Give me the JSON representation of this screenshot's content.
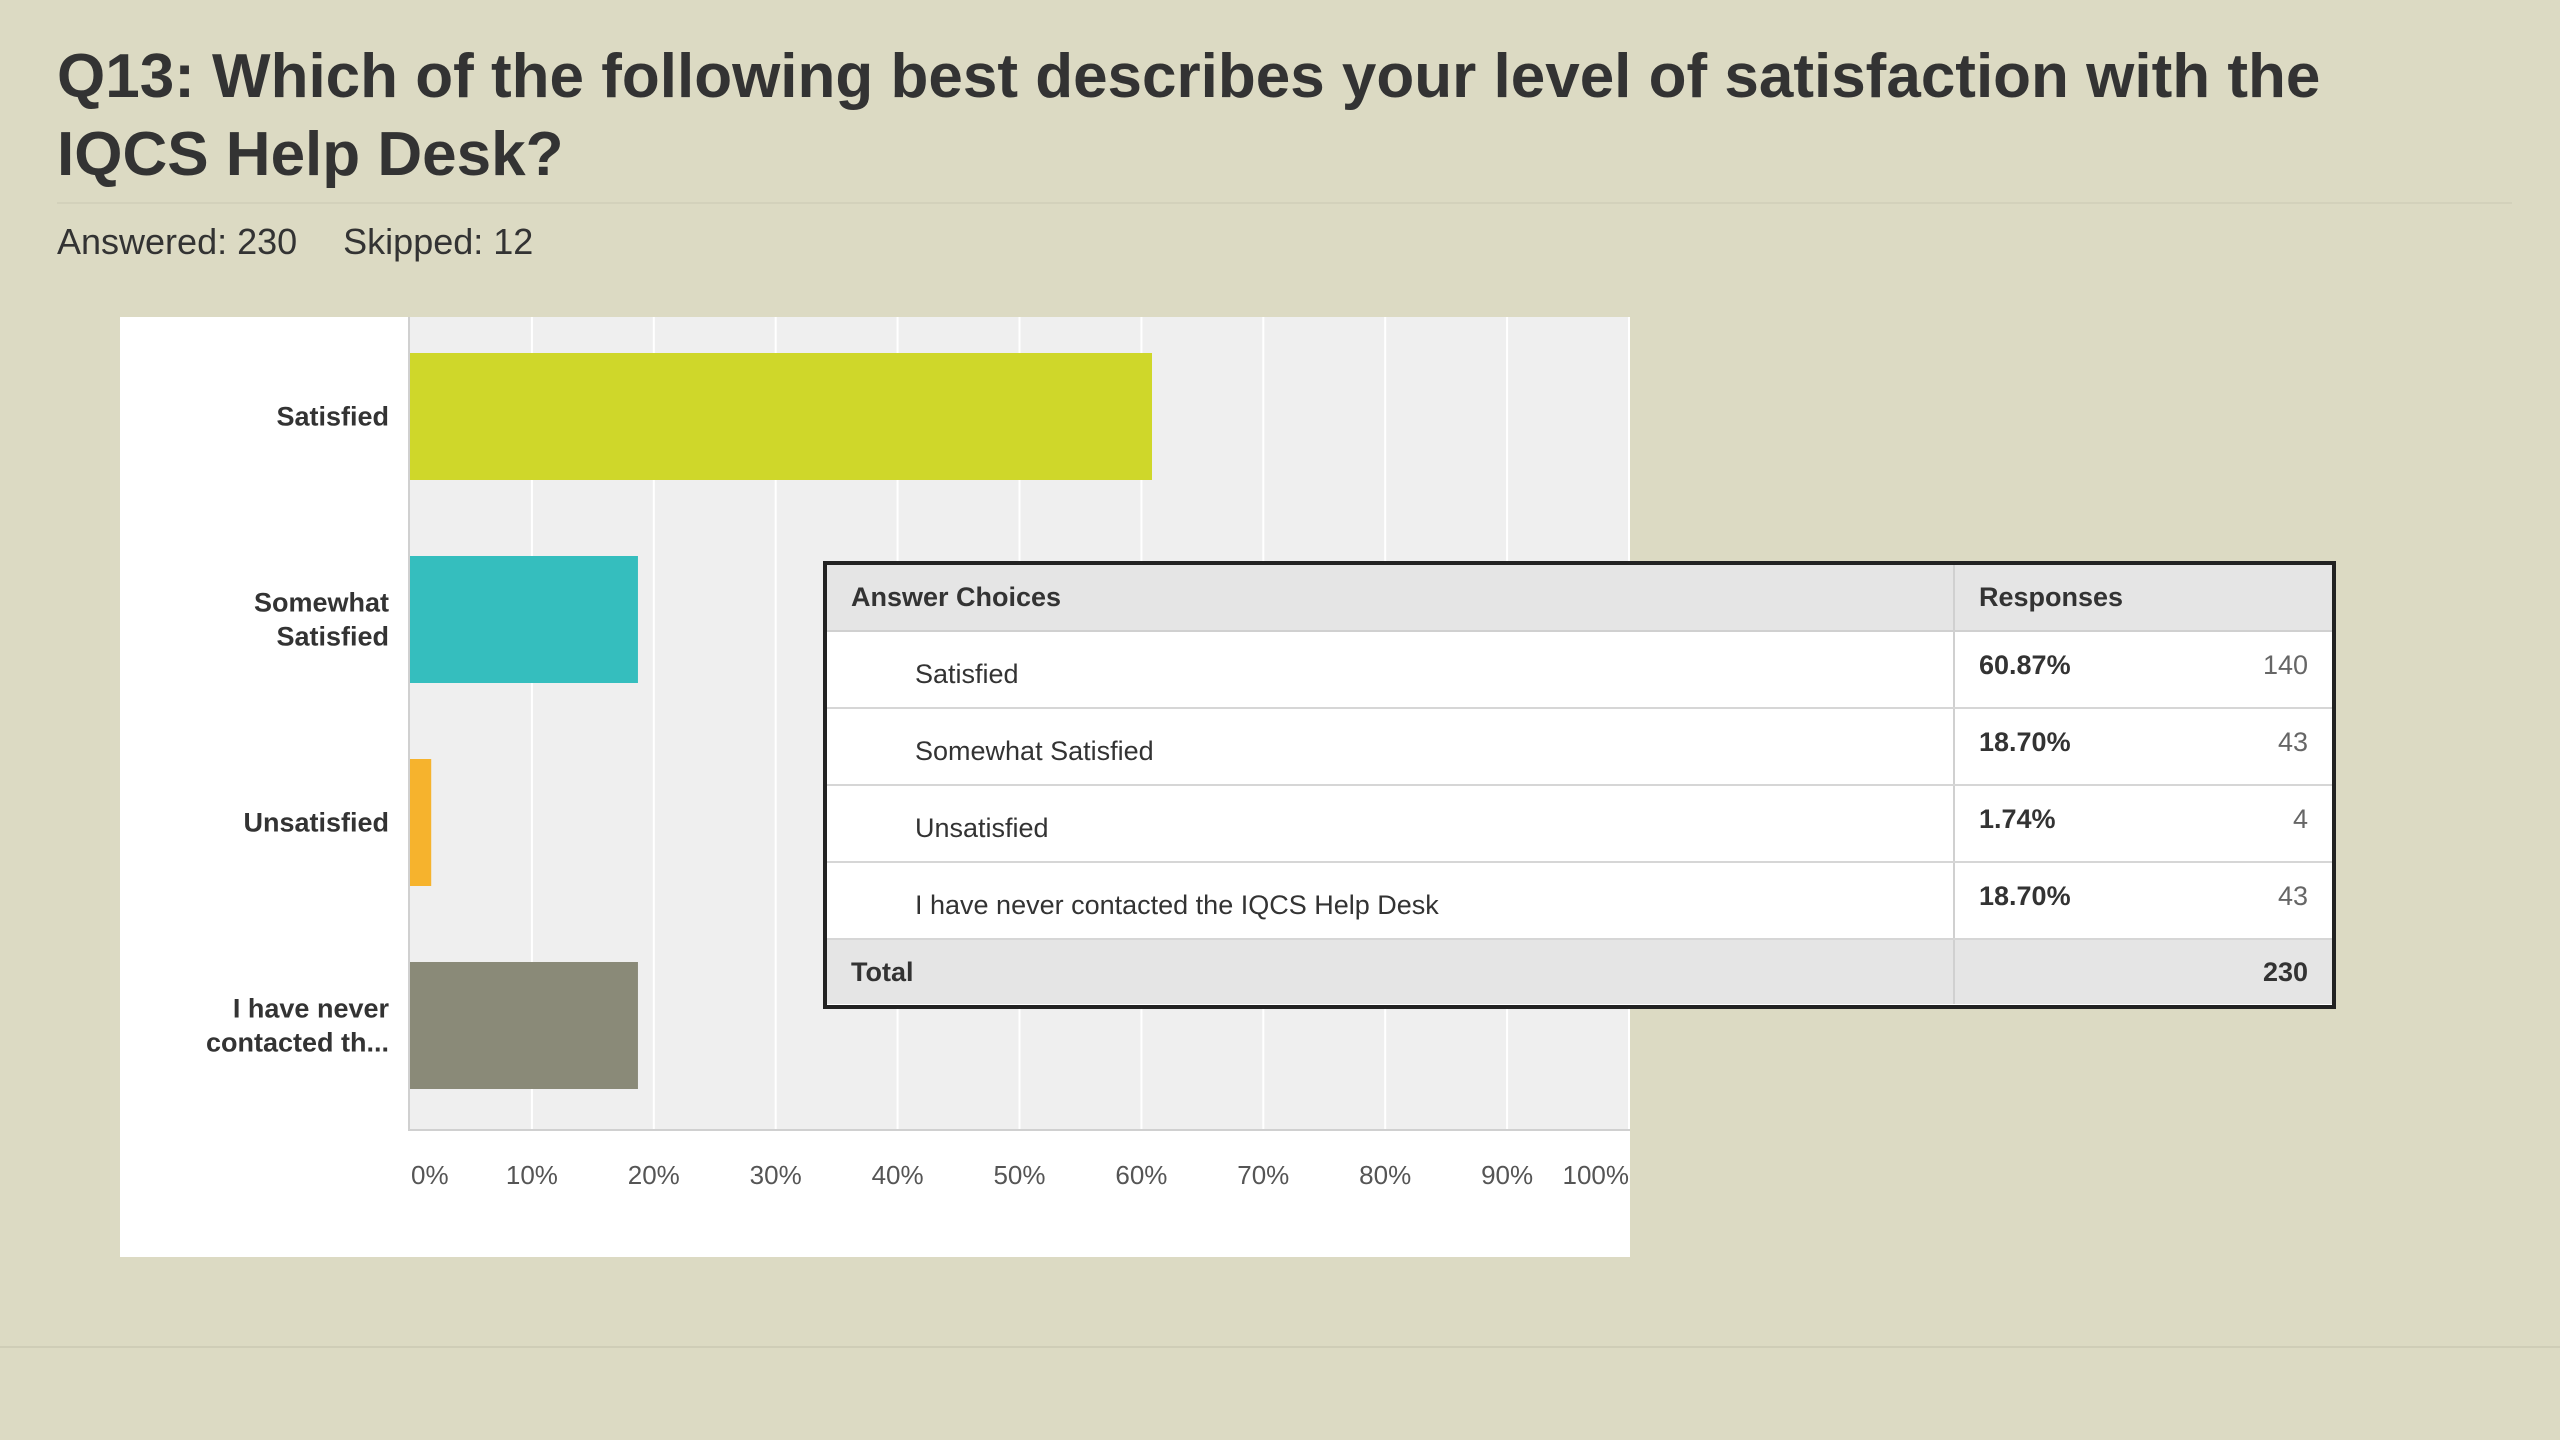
{
  "question": {
    "title": "Q13: Which of the following best describes your level of satisfaction with the IQCS Help Desk?",
    "answered": "Answered: 230",
    "skipped": "Skipped: 12"
  },
  "colors": {
    "page_background": "#dcdac3",
    "plot_background": "#efefef",
    "bar_satisfied": "#cfd72a",
    "bar_somewhat_satisfied": "#35bebe",
    "bar_unsatisfied": "#f6b32d",
    "bar_never_contacted": "#8a8a78"
  },
  "chart_data": {
    "type": "bar",
    "orientation": "horizontal",
    "categories": [
      [
        "Satisfied"
      ],
      [
        "Somewhat",
        "Satisfied"
      ],
      [
        "Unsatisfied"
      ],
      [
        "I have never",
        "contacted th..."
      ]
    ],
    "values": [
      60.87,
      18.7,
      1.74,
      18.7
    ],
    "bar_colors": [
      "#cfd72a",
      "#35bebe",
      "#f6b32d",
      "#8a8a78"
    ],
    "xlim": [
      0,
      100
    ],
    "x_ticks": [
      "0%",
      "10%",
      "20%",
      "30%",
      "40%",
      "50%",
      "60%",
      "70%",
      "80%",
      "90%",
      "100%"
    ],
    "grid": true,
    "title": "",
    "xlabel": "",
    "ylabel": ""
  },
  "summary_table": {
    "header_choices": "Answer Choices",
    "header_responses": "Responses",
    "rows": [
      {
        "choice": "Satisfied",
        "percent": "60.87%",
        "count": "140"
      },
      {
        "choice": "Somewhat Satisfied",
        "percent": "18.70%",
        "count": "43"
      },
      {
        "choice": "Unsatisfied",
        "percent": "1.74%",
        "count": "4"
      },
      {
        "choice": "I have never contacted the IQCS Help Desk",
        "percent": "18.70%",
        "count": "43"
      }
    ],
    "total_label": "Total",
    "total_value": "230"
  }
}
